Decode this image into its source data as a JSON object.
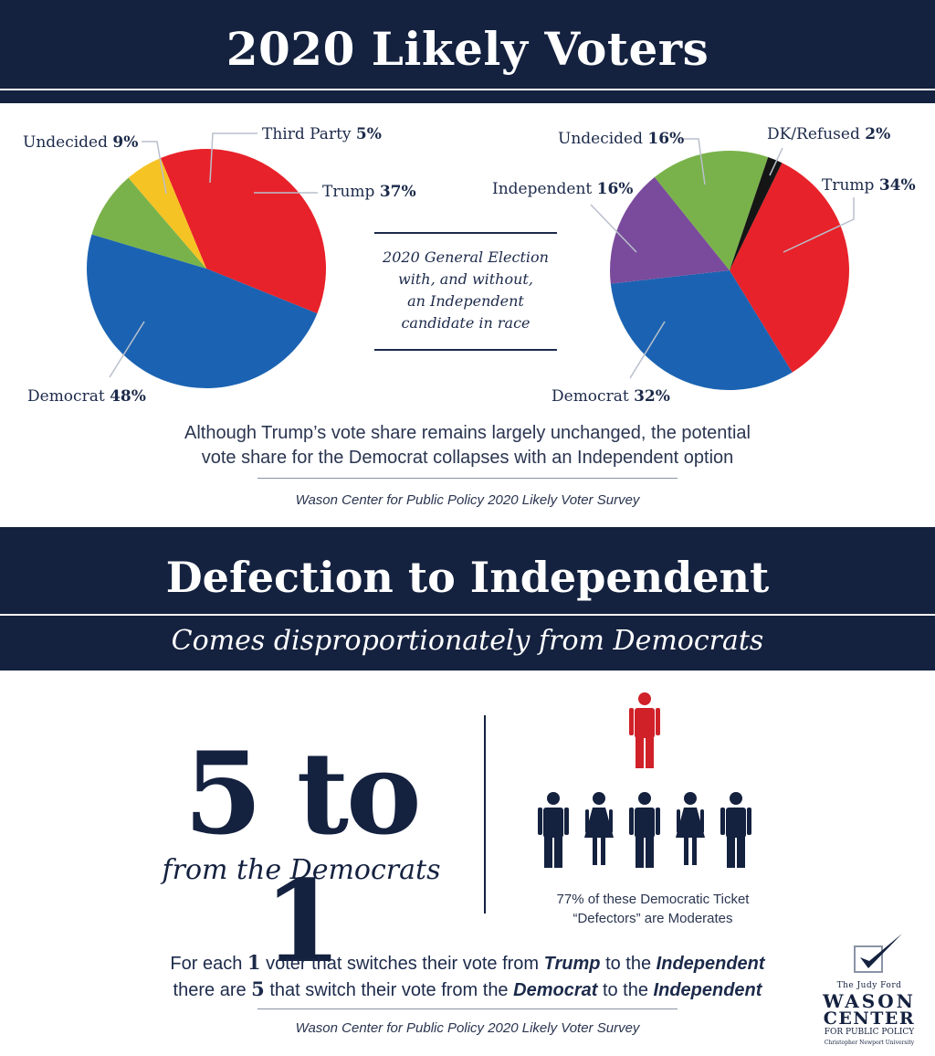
{
  "header": {
    "title": "2020 Likely Voters"
  },
  "center_note": {
    "line1": "2020 General Election",
    "line2": "with, and without,",
    "line3": "an Independent",
    "line4": "candidate in race"
  },
  "chart_data": [
    {
      "type": "pie",
      "title": "",
      "slices": [
        {
          "label": "Trump",
          "value": 37,
          "pct_text": "37%",
          "color": "#e8222a"
        },
        {
          "label": "Democrat",
          "value": 48,
          "pct_text": "48%",
          "color": "#1b63b2"
        },
        {
          "label": "Undecided",
          "value": 9,
          "pct_text": "9%",
          "color": "#79b24a"
        },
        {
          "label": "Third Party",
          "value": 5,
          "pct_text": "5%",
          "color": "#f6c324"
        }
      ]
    },
    {
      "type": "pie",
      "title": "",
      "slices": [
        {
          "label": "Trump",
          "value": 34,
          "pct_text": "34%",
          "color": "#e8222a"
        },
        {
          "label": "Democrat",
          "value": 32,
          "pct_text": "32%",
          "color": "#1b63b2"
        },
        {
          "label": "Independent",
          "value": 16,
          "pct_text": "16%",
          "color": "#7a4b9c"
        },
        {
          "label": "Undecided",
          "value": 16,
          "pct_text": "16%",
          "color": "#79b24a"
        },
        {
          "label": "DK/Refused",
          "value": 2,
          "pct_text": "2%",
          "color": "#151515"
        }
      ]
    }
  ],
  "summary": {
    "line1": "Although Trump’s vote share remains largely unchanged, the potential",
    "line2": "vote share for the Democrat collapses with an Independent option"
  },
  "source1": "Wason Center for Public Policy 2020 Likely Voter Survey",
  "defection": {
    "title": "Defection to Independent",
    "subtitle": "Comes disproportionately from Democrats",
    "ratio": "5 to 1",
    "ratio_sub": "from the Democrats",
    "people_note_line1": "77% of these Democratic Ticket",
    "people_note_line2": "“Defectors” are Moderates",
    "people": {
      "top_count": 1,
      "top_color": "#d02128",
      "bottom_count": 5,
      "bottom_color": "#14213f"
    }
  },
  "explain": {
    "l1_a": "For each ",
    "l1_num": "1",
    "l1_b": " voter that switches their vote from ",
    "l1_trump": "Trump",
    "l1_c": " to the ",
    "l1_ind": "Independent",
    "l2_a": "there are ",
    "l2_num": "5",
    "l2_b": " that switch their vote from the ",
    "l2_dem": "Democrat",
    "l2_c": " to the ",
    "l2_ind": "Independent"
  },
  "source2": "Wason Center for Public Policy 2020 Likely Voter Survey",
  "logo": {
    "line1": "The Judy Ford",
    "line2": "WASON",
    "line3": "CENTER",
    "line4": "FOR PUBLIC POLICY",
    "line5": "Christopher Newport University"
  }
}
